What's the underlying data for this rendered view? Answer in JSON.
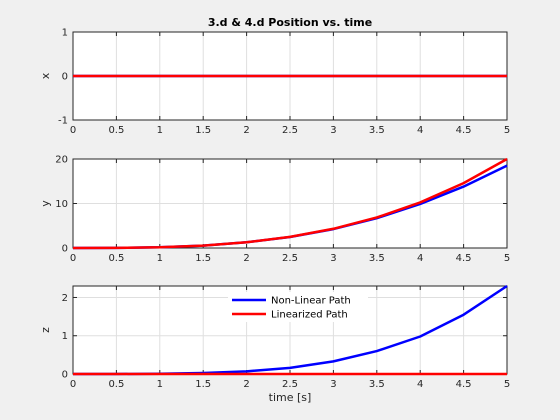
{
  "chart_data": [
    {
      "type": "line",
      "title": "3.d & 4.d Position vs. time",
      "xlabel": "",
      "ylabel": "x",
      "xlim": [
        0,
        5
      ],
      "ylim": [
        -1,
        1
      ],
      "xticks": [
        "0",
        "0.5",
        "1",
        "1.5",
        "2",
        "2.5",
        "3",
        "3.5",
        "4",
        "4.5",
        "5"
      ],
      "yticks": [
        "-1",
        "0",
        "1"
      ],
      "grid": true,
      "x": [
        0,
        0.5,
        1,
        1.5,
        2,
        2.5,
        3,
        3.5,
        4,
        4.5,
        5
      ],
      "series": [
        {
          "values": [
            0,
            0,
            0,
            0,
            0,
            0,
            0,
            0,
            0,
            0,
            0
          ],
          "color": "#0000ff"
        },
        {
          "values": [
            0,
            0,
            0,
            0,
            0,
            0,
            0,
            0,
            0,
            0,
            0
          ],
          "color": "#ff0000"
        }
      ]
    },
    {
      "type": "line",
      "title": "",
      "xlabel": "",
      "ylabel": "y",
      "xlim": [
        0,
        5
      ],
      "ylim": [
        0,
        20
      ],
      "xticks": [
        "0",
        "0.5",
        "1",
        "1.5",
        "2",
        "2.5",
        "3",
        "3.5",
        "4",
        "4.5",
        "5"
      ],
      "yticks": [
        "0",
        "10",
        "20"
      ],
      "grid": true,
      "x": [
        0,
        0.5,
        1,
        1.5,
        2,
        2.5,
        3,
        3.5,
        4,
        4.5,
        5
      ],
      "series": [
        {
          "values": [
            0,
            0.02,
            0.16,
            0.54,
            1.28,
            2.48,
            4.25,
            6.7,
            9.9,
            13.8,
            18.5
          ],
          "color": "#0000ff"
        },
        {
          "values": [
            0,
            0.02,
            0.16,
            0.54,
            1.28,
            2.5,
            4.32,
            6.86,
            10.24,
            14.58,
            20.0
          ],
          "color": "#ff0000"
        }
      ]
    },
    {
      "type": "line",
      "title": "",
      "xlabel": "time [s]",
      "ylabel": "z",
      "xlim": [
        0,
        5
      ],
      "ylim": [
        0,
        2.3
      ],
      "xticks": [
        "0",
        "0.5",
        "1",
        "1.5",
        "2",
        "2.5",
        "3",
        "3.5",
        "4",
        "4.5",
        "5"
      ],
      "yticks": [
        "0",
        "1",
        "2"
      ],
      "yticks_values": [
        0,
        1,
        2
      ],
      "grid": true,
      "legend": {
        "placement": "top-center",
        "entries": [
          "Non-Linear Path",
          "Linearized Path"
        ]
      },
      "x": [
        0,
        0.5,
        1,
        1.5,
        2,
        2.5,
        3,
        3.5,
        4,
        4.5,
        5
      ],
      "series": [
        {
          "name": "Non-Linear Path",
          "values": [
            0,
            0.0005,
            0.005,
            0.025,
            0.07,
            0.16,
            0.33,
            0.6,
            0.98,
            1.55,
            2.3
          ],
          "color": "#0000ff"
        },
        {
          "name": "Linearized Path",
          "values": [
            0,
            0,
            0,
            0,
            0,
            0,
            0,
            0,
            0,
            0,
            0
          ],
          "color": "#ff0000"
        }
      ]
    }
  ]
}
